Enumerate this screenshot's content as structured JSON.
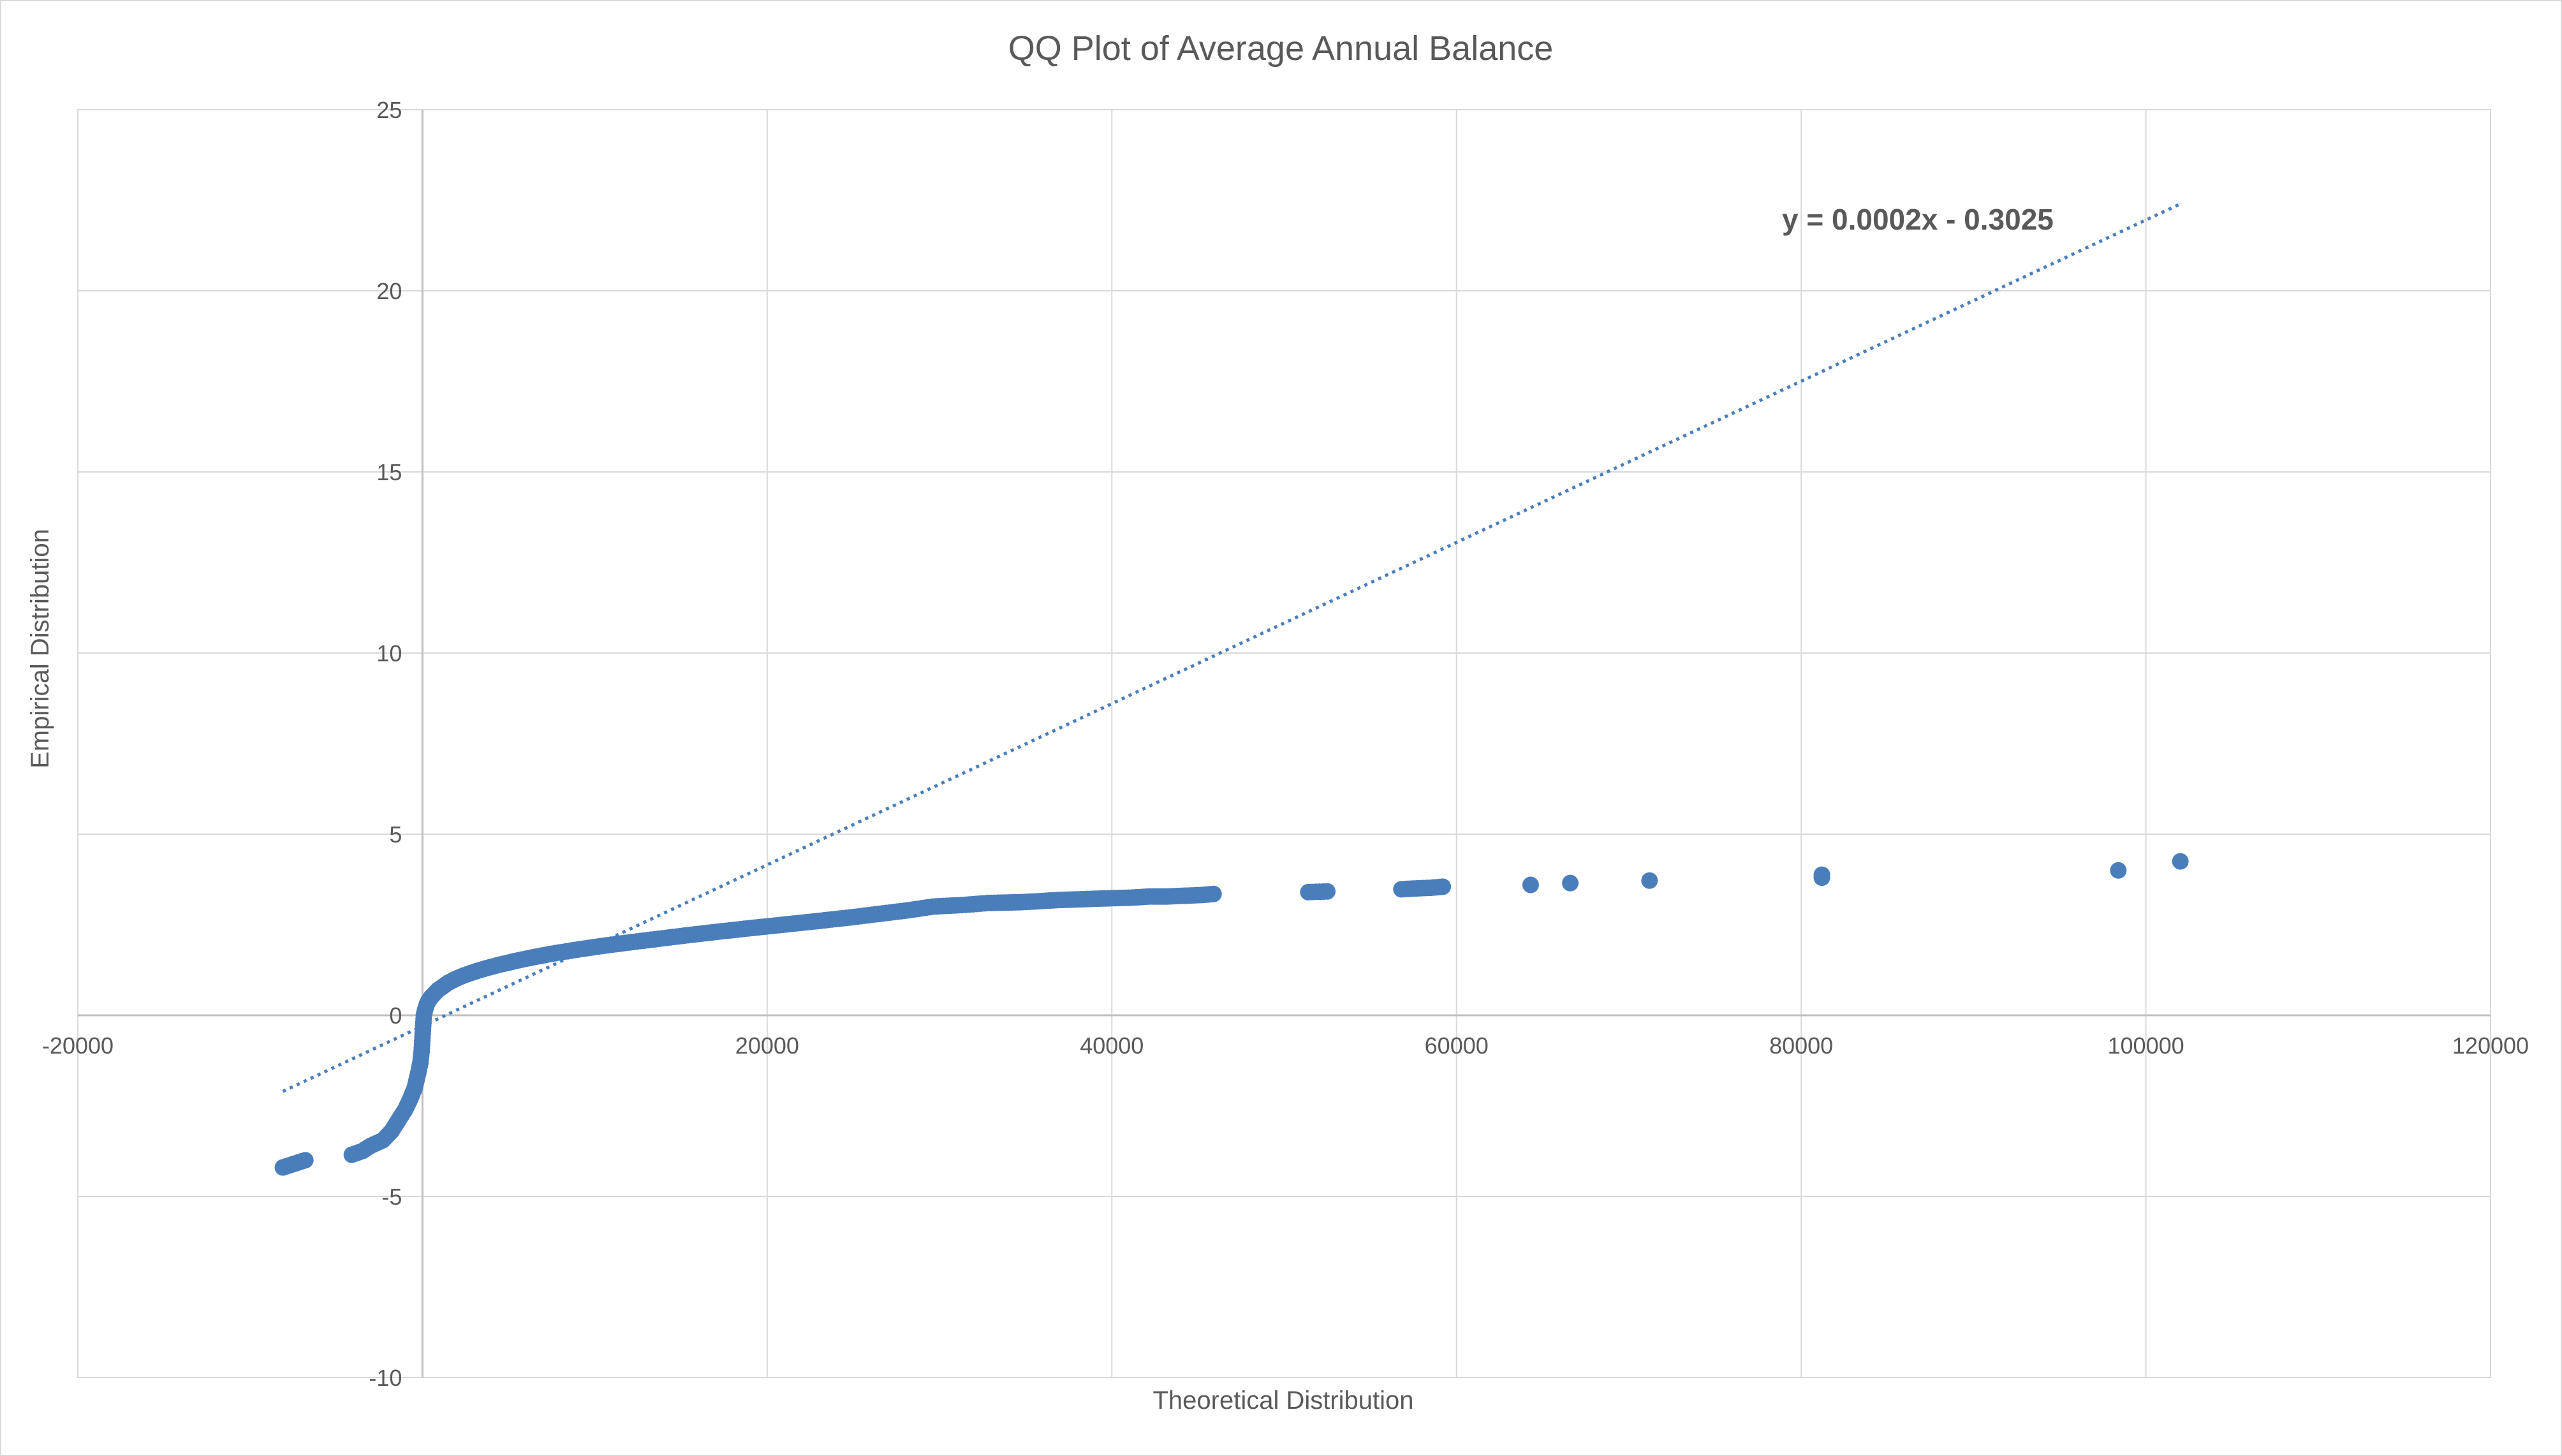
{
  "chart_data": {
    "type": "scatter",
    "title": "QQ Plot of Average Annual Balance",
    "xlabel": "Theoretical Distribution",
    "ylabel": "Empirical Distribution",
    "xlim": [
      -20000,
      120000
    ],
    "ylim": [
      -10,
      25
    ],
    "x_ticks": [
      -20000,
      0,
      20000,
      40000,
      60000,
      80000,
      100000,
      120000
    ],
    "y_ticks": [
      -10,
      -5,
      0,
      5,
      10,
      15,
      20,
      25
    ],
    "x_tick_labels": [
      "-20000",
      "0",
      "20000",
      "40000",
      "60000",
      "80000",
      "100000",
      "120000"
    ],
    "y_tick_labels": [
      "-10",
      "-5",
      "0",
      "5",
      "10",
      "15",
      "20",
      "25"
    ],
    "grid": true,
    "legend": "none",
    "point_color": "#4a7ebb",
    "series": [
      {
        "points": [
          [
            -8100,
            -4.2
          ],
          [
            -6800,
            -4.0
          ],
          [
            -4100,
            -3.85
          ],
          [
            -3500,
            -3.75
          ],
          [
            -3000,
            -3.6
          ],
          [
            -2300,
            -3.45
          ],
          [
            -1800,
            -3.2
          ],
          [
            -1400,
            -2.9
          ],
          [
            -1000,
            -2.6
          ],
          [
            -700,
            -2.3
          ],
          [
            -450,
            -2.0
          ],
          [
            -250,
            -1.6
          ],
          [
            -120,
            -1.3
          ],
          [
            -50,
            -1.0
          ],
          [
            0,
            -0.6
          ],
          [
            40,
            -0.3
          ],
          [
            80,
            0.0
          ],
          [
            150,
            0.15
          ],
          [
            250,
            0.3
          ],
          [
            350,
            0.4
          ],
          [
            500,
            0.5
          ],
          [
            700,
            0.6
          ],
          [
            900,
            0.7
          ],
          [
            1200,
            0.8
          ],
          [
            1500,
            0.9
          ],
          [
            1900,
            1.0
          ],
          [
            2400,
            1.1
          ],
          [
            3000,
            1.2
          ],
          [
            3700,
            1.3
          ],
          [
            4500,
            1.4
          ],
          [
            5400,
            1.5
          ],
          [
            6400,
            1.6
          ],
          [
            7500,
            1.7
          ],
          [
            8800,
            1.8
          ],
          [
            10200,
            1.9
          ],
          [
            11800,
            2.0
          ],
          [
            13500,
            2.1
          ],
          [
            15200,
            2.2
          ],
          [
            17000,
            2.3
          ],
          [
            18900,
            2.4
          ],
          [
            20900,
            2.5
          ],
          [
            22900,
            2.6
          ],
          [
            24800,
            2.7
          ],
          [
            26500,
            2.8
          ],
          [
            28200,
            2.9
          ],
          [
            29600,
            3.0
          ],
          [
            31500,
            3.05
          ],
          [
            32800,
            3.1
          ],
          [
            34600,
            3.12
          ],
          [
            35800,
            3.15
          ],
          [
            36800,
            3.18
          ],
          [
            38000,
            3.2
          ],
          [
            39200,
            3.22
          ],
          [
            41200,
            3.25
          ],
          [
            42200,
            3.28
          ],
          [
            43200,
            3.28
          ],
          [
            44200,
            3.3
          ],
          [
            45200,
            3.32
          ],
          [
            45900,
            3.35
          ],
          [
            51400,
            3.4
          ],
          [
            52500,
            3.42
          ],
          [
            56800,
            3.48
          ],
          [
            57500,
            3.5
          ],
          [
            58500,
            3.52
          ],
          [
            59200,
            3.55
          ],
          [
            64300,
            3.6
          ],
          [
            66600,
            3.65
          ],
          [
            71200,
            3.72
          ],
          [
            81200,
            3.8
          ],
          [
            81200,
            3.88
          ],
          [
            98400,
            4.0
          ],
          [
            102000,
            4.25
          ]
        ]
      }
    ],
    "trendline": {
      "equation": "y = 0.0002x - 0.3025",
      "slope": 0.0002,
      "intercept": -0.3025,
      "x_range": [
        -8100,
        102000
      ],
      "y_range": [
        -2.1,
        22.4
      ],
      "style": "dotted",
      "color": "#4a7ebb"
    }
  }
}
